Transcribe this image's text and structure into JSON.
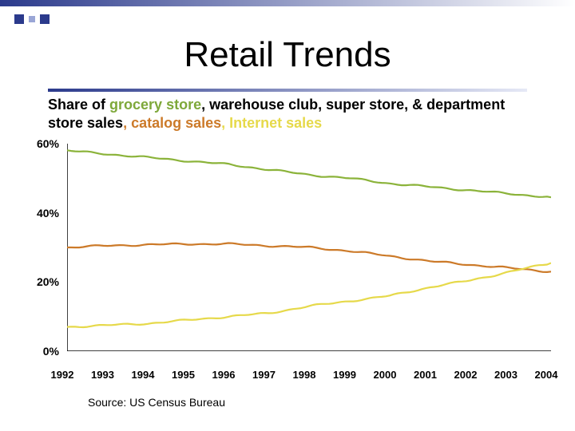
{
  "decor": {
    "bar_gradient_from": "#2b3a8c",
    "bar_gradient_to": "#ffffff",
    "square_colors": [
      "#2b3a8c",
      "#9aa6d6",
      "#2b3a8c"
    ],
    "underline_from": "#2b3a8c",
    "underline_to": "#e6e9f6"
  },
  "title": "Retail Trends",
  "subhead": {
    "prefix": "Share of ",
    "segments": [
      {
        "text": "grocery store",
        "color": "#7ea83a"
      },
      {
        "text": ", warehouse club, super store, & department store sales",
        "color": "#000000"
      },
      {
        "text": ", catalog sales",
        "color": "#cc7a29"
      },
      {
        "text": ", Internet sales",
        "color": "#e6d94a"
      }
    ]
  },
  "chart": {
    "type": "line",
    "xlim": [
      1992,
      2004
    ],
    "ylim": [
      0,
      60
    ],
    "ytick_step": 20,
    "xticks": [
      1992,
      1993,
      1994,
      1995,
      1996,
      1997,
      1998,
      1999,
      2000,
      2001,
      2002,
      2003,
      2004
    ],
    "x_label_suffix": "",
    "y_label_suffix": "%",
    "axis_color": "#000000",
    "tick_color": "#000000",
    "grid": false,
    "background_color": "#ffffff",
    "line_width": 2.2,
    "title_fontsize": 44,
    "axis_label_fontsize": 14,
    "axis_label_fontweight": 700,
    "series": [
      {
        "name": "grocery_store",
        "color": "#8bb33a",
        "x": [
          1992,
          1993,
          1994,
          1995,
          1996,
          1997,
          1998,
          1999,
          2000,
          2001,
          2002,
          2003,
          2004
        ],
        "y": [
          58,
          57,
          56,
          55,
          54,
          52.5,
          51,
          50,
          48.5,
          47.5,
          46.5,
          45.5,
          44.5
        ]
      },
      {
        "name": "catalog_sales",
        "color": "#cc7a29",
        "x": [
          1992,
          1993,
          1994,
          1995,
          1996,
          1997,
          1998,
          1999,
          2000,
          2001,
          2002,
          2003,
          2004
        ],
        "y": [
          30,
          30.5,
          30.8,
          31,
          31,
          30.5,
          30,
          29,
          27.5,
          26,
          25,
          24,
          23
        ]
      },
      {
        "name": "internet_sales",
        "color": "#e6d94a",
        "x": [
          1992,
          1993,
          1994,
          1995,
          1996,
          1997,
          1998,
          1999,
          2000,
          2001,
          2002,
          2003,
          2004
        ],
        "y": [
          7,
          7.5,
          8,
          9,
          10,
          11,
          13,
          14.5,
          16,
          18.5,
          20.5,
          23,
          25.5
        ]
      }
    ],
    "jitter_amplitude": 0.6
  },
  "source": "Source: US Census Bureau"
}
